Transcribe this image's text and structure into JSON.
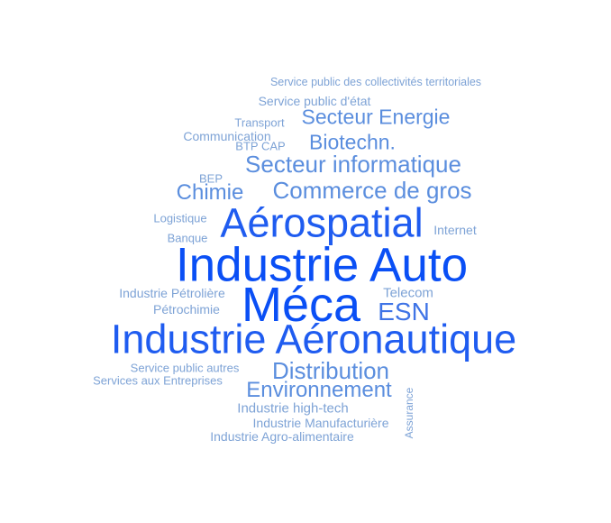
{
  "words": [
    "Service public des collectivités territoriales",
    "Service public d'état",
    "Transport",
    "Secteur Energie",
    "Communication",
    "BTP CAP",
    "Biotechn.",
    "Secteur informatique",
    "BEP",
    "Chimie",
    "Commerce de gros",
    "Logistique",
    "Aérospatial",
    "Internet",
    "Banque",
    "Industrie Auto",
    "Industrie Pétrolière",
    "Telecom",
    "Méca",
    "Pétrochimie",
    "ESN",
    "Industrie Aéronautique",
    "Service public autres",
    "Distribution",
    "Services aux Entreprises",
    "Environnement",
    "Industrie high-tech",
    "Assurance",
    "Industrie Manufacturière",
    "Industrie Agro-alimentaire"
  ]
}
